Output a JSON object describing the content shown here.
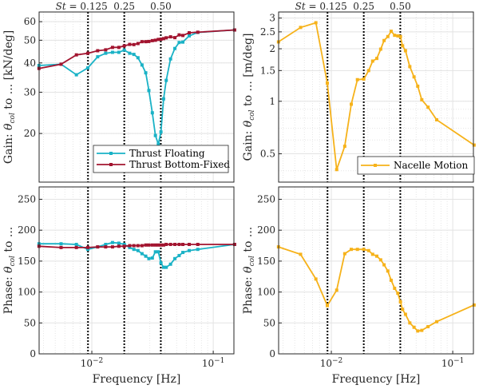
{
  "colors": {
    "thrust_floating": "#1ab2c6",
    "thrust_bottom_fixed": "#a2142f",
    "nacelle_motion": "#f6b21a",
    "strouhal_lines": "#000000"
  },
  "strouhal": {
    "prefix": "St = ",
    "labels": [
      "0.125",
      "0.25",
      "0.50"
    ],
    "freqs": [
      0.0093,
      0.0185,
      0.037
    ]
  },
  "chart_data": [
    {
      "type": "line",
      "panel": "top-left",
      "xscale": "log",
      "yscale": "log",
      "xlim": [
        0.00368,
        0.148
      ],
      "ylim": [
        12.4,
        66
      ],
      "grid": true,
      "legend": "bottom-right",
      "ylabel": {
        "pre": "Gain: ",
        "sym": "θ",
        "sub": "col",
        "post": " to ... [kN/deg]"
      },
      "yticks": [
        20,
        30,
        40,
        50,
        60
      ],
      "yticklabels": [
        "20",
        "30",
        "40",
        "50",
        "60"
      ],
      "x": [
        0.00367,
        0.00558,
        0.00746,
        0.00927,
        0.01117,
        0.013,
        0.0148,
        0.0167,
        0.0185,
        0.0205,
        0.0222,
        0.024,
        0.0259,
        0.0278,
        0.0295,
        0.0315,
        0.0334,
        0.0353,
        0.0371,
        0.039,
        0.041,
        0.0445,
        0.0483,
        0.0524,
        0.0562,
        0.0634,
        0.0746,
        0.15
      ],
      "series": [
        {
          "name": "Thrust Floating",
          "color_key": "thrust_floating",
          "values": [
            39.0,
            39.5,
            35.6,
            38.1,
            42.5,
            44.0,
            44.4,
            44.4,
            45.4,
            44.0,
            43.5,
            42.1,
            39.2,
            36.3,
            30.5,
            24.5,
            19.6,
            18.0,
            20.3,
            28.1,
            33.7,
            41.6,
            46.1,
            48.9,
            49.1,
            52.2,
            54.0,
            55.3
          ]
        },
        {
          "name": "Thrust Bottom-Fixed",
          "color_key": "thrust_bottom_fixed",
          "values": [
            37.9,
            39.5,
            43.3,
            44.0,
            45.1,
            45.5,
            46.6,
            46.6,
            47.3,
            48.0,
            47.9,
            48.4,
            49.3,
            49.3,
            49.4,
            49.8,
            50.0,
            50.4,
            50.5,
            50.8,
            51.2,
            51.7,
            51.3,
            52.7,
            52.4,
            53.8,
            54.1,
            55.3
          ]
        }
      ]
    },
    {
      "type": "line",
      "panel": "top-right",
      "xscale": "log",
      "yscale": "log",
      "xlim": [
        0.00368,
        0.148
      ],
      "ylim": [
        0.344,
        3.25
      ],
      "grid": true,
      "legend": "bottom-right",
      "ylabel": {
        "pre": "Gain: ",
        "sym": "θ",
        "sub": "col",
        "post": " to ... [m/deg]"
      },
      "yticks": [
        0.5,
        1,
        1.5,
        2,
        2.5,
        3
      ],
      "yticklabels": [
        "0.5",
        "1",
        "1.5",
        "2",
        "2.5",
        "3"
      ],
      "x": [
        0.00367,
        0.00558,
        0.00746,
        0.00927,
        0.01107,
        0.0129,
        0.0146,
        0.0164,
        0.0185,
        0.0203,
        0.0219,
        0.0237,
        0.0255,
        0.0272,
        0.0292,
        0.0311,
        0.0332,
        0.0353,
        0.0371,
        0.0386,
        0.0408,
        0.0443,
        0.048,
        0.0515,
        0.0556,
        0.0626,
        0.0738,
        0.15
      ],
      "series": [
        {
          "name": "Nacelle Motion",
          "color_key": "nacelle_motion",
          "values": [
            2.19,
            2.65,
            2.82,
            1.27,
            0.406,
            0.552,
            0.962,
            1.33,
            1.34,
            1.5,
            1.7,
            1.76,
            1.99,
            2.23,
            2.35,
            2.52,
            2.39,
            2.37,
            2.35,
            2.08,
            1.95,
            1.58,
            1.38,
            1.22,
            1.02,
            0.925,
            0.783,
            0.561
          ]
        }
      ]
    },
    {
      "type": "line",
      "panel": "bottom-left",
      "xscale": "log",
      "yscale": "linear",
      "xlim": [
        0.00368,
        0.148
      ],
      "ylim": [
        0,
        270
      ],
      "grid": true,
      "xlabel": "Frequency [Hz]",
      "ylabel": {
        "pre": "Phase: ",
        "sym": "θ",
        "sub": "col",
        "post": " to ..."
      },
      "yticks": [
        0,
        50,
        100,
        150,
        200,
        250
      ],
      "yticklabels": [
        "0",
        "50",
        "100",
        "150",
        "200",
        "250"
      ],
      "xticks": [
        0.01,
        0.1
      ],
      "xticklabels": [
        {
          "base": "10",
          "exp": "−2"
        },
        {
          "base": "10",
          "exp": "−1"
        }
      ],
      "x": [
        0.00367,
        0.00558,
        0.00746,
        0.00927,
        0.01117,
        0.013,
        0.0148,
        0.0167,
        0.0185,
        0.0205,
        0.0222,
        0.024,
        0.0259,
        0.0278,
        0.0295,
        0.0315,
        0.0334,
        0.0353,
        0.0371,
        0.039,
        0.041,
        0.0445,
        0.0483,
        0.0524,
        0.0562,
        0.0634,
        0.0746,
        0.15
      ],
      "series": [
        {
          "name": "Thrust Floating",
          "color_key": "thrust_floating",
          "values": [
            178,
            178,
            177,
            169,
            173,
            177,
            180,
            179,
            177,
            172,
            169,
            167,
            162,
            158,
            154,
            155,
            165,
            165,
            147,
            140,
            140,
            145,
            154,
            159,
            164,
            167,
            169,
            177
          ]
        },
        {
          "name": "Thrust Bottom-Fixed",
          "color_key": "thrust_bottom_fixed",
          "values": [
            174,
            172,
            172,
            172,
            173,
            173,
            173,
            174,
            174,
            175,
            175,
            175,
            175,
            176,
            176,
            176,
            176,
            176,
            176,
            176,
            177,
            177,
            177,
            177,
            177,
            177,
            177,
            177
          ]
        }
      ]
    },
    {
      "type": "line",
      "panel": "bottom-right",
      "xscale": "log",
      "yscale": "linear",
      "xlim": [
        0.00368,
        0.148
      ],
      "ylim": [
        0,
        270
      ],
      "grid": true,
      "xlabel": "Frequency [Hz]",
      "ylabel": {
        "pre": "Phase: ",
        "sym": "θ",
        "sub": "col",
        "post": " to ..."
      },
      "yticks": [
        0,
        50,
        100,
        150,
        200,
        250
      ],
      "yticklabels": [
        "0",
        "50",
        "100",
        "150",
        "200",
        "250"
      ],
      "xticks": [
        0.01,
        0.1
      ],
      "xticklabels": [
        {
          "base": "10",
          "exp": "−2"
        },
        {
          "base": "10",
          "exp": "−1"
        }
      ],
      "x": [
        0.00367,
        0.00558,
        0.00746,
        0.00927,
        0.01107,
        0.0129,
        0.0146,
        0.0164,
        0.0185,
        0.0203,
        0.0219,
        0.0237,
        0.0255,
        0.0272,
        0.0292,
        0.0311,
        0.0332,
        0.0353,
        0.0371,
        0.0386,
        0.0408,
        0.0443,
        0.048,
        0.0515,
        0.0556,
        0.0626,
        0.0738,
        0.15
      ],
      "series": [
        {
          "name": "Nacelle Motion",
          "color_key": "nacelle_motion",
          "values": [
            173,
            161,
            121,
            78,
            103,
            162,
            169,
            169,
            169,
            167,
            161,
            158,
            152,
            144,
            134,
            119,
            106,
            98,
            84,
            72,
            64,
            50,
            43,
            37,
            38,
            44,
            52,
            79
          ]
        }
      ]
    }
  ]
}
